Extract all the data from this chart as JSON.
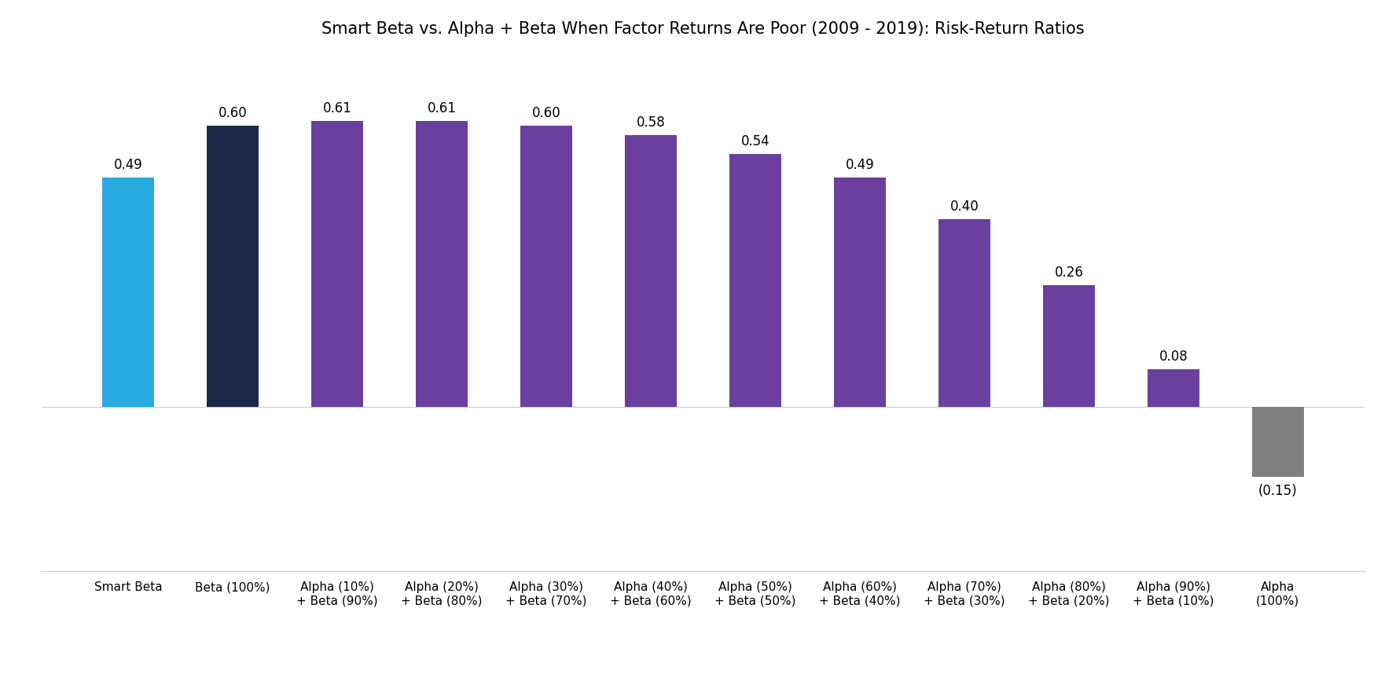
{
  "title": "Smart Beta vs. Alpha + Beta When Factor Returns Are Poor (2009 - 2019): Risk-Return Ratios",
  "categories": [
    "Smart Beta",
    "Beta (100%)",
    "Alpha (10%)\n+ Beta (90%)",
    "Alpha (20%)\n+ Beta (80%)",
    "Alpha (30%)\n+ Beta (70%)",
    "Alpha (40%)\n+ Beta (60%)",
    "Alpha (50%)\n+ Beta (50%)",
    "Alpha (60%)\n+ Beta (40%)",
    "Alpha (70%)\n+ Beta (30%)",
    "Alpha (80%)\n+ Beta (20%)",
    "Alpha (90%)\n+ Beta (10%)",
    "Alpha\n(100%)"
  ],
  "values": [
    0.49,
    0.6,
    0.61,
    0.61,
    0.6,
    0.58,
    0.54,
    0.49,
    0.4,
    0.26,
    0.08,
    -0.15
  ],
  "bar_colors": [
    "#29ABE2",
    "#1B2A4A",
    "#6B3FA0",
    "#6B3FA0",
    "#6B3FA0",
    "#6B3FA0",
    "#6B3FA0",
    "#6B3FA0",
    "#6B3FA0",
    "#6B3FA0",
    "#6B3FA0",
    "#808080"
  ],
  "value_labels": [
    "0.49",
    "0.60",
    "0.61",
    "0.61",
    "0.60",
    "0.58",
    "0.54",
    "0.49",
    "0.40",
    "0.26",
    "0.08",
    "(0.15)"
  ],
  "ylim": [
    -0.35,
    0.75
  ],
  "title_fontsize": 15,
  "label_fontsize": 12,
  "tick_fontsize": 11,
  "bar_width": 0.5
}
